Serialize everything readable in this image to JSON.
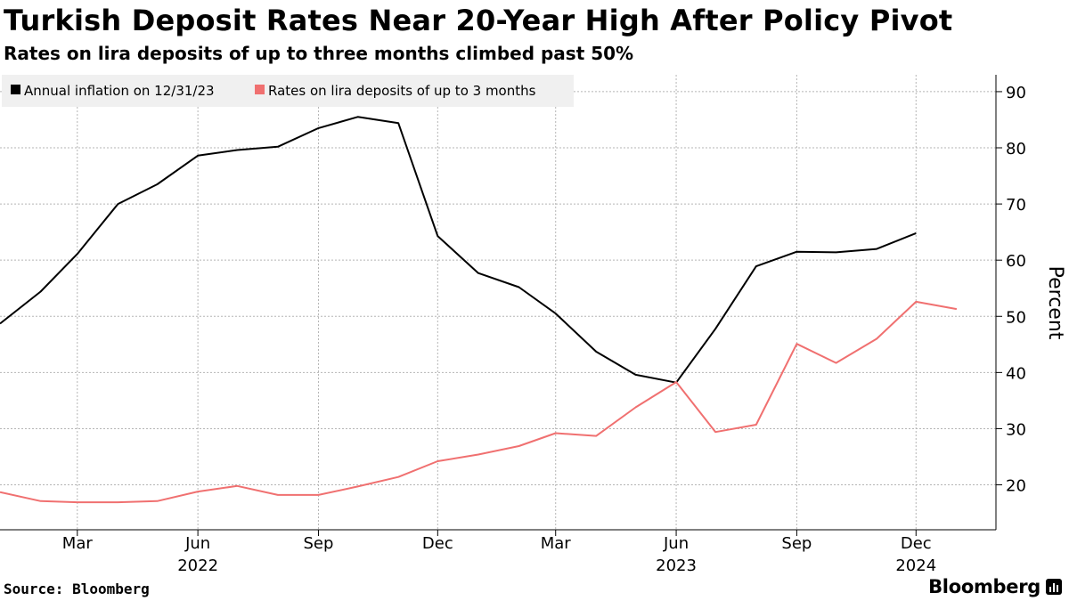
{
  "header": {
    "title": "Turkish Deposit Rates Near 20-Year High After Policy Pivot",
    "subtitle": "Rates on lira deposits of up to three months climbed past 50%"
  },
  "footer": {
    "source": "Source: Bloomberg",
    "brand": "Bloomberg"
  },
  "colors": {
    "inflation": "#000000",
    "deposit": "#f07070",
    "grid": "#b5b5b5",
    "legend_bg": "#f0f0f0"
  },
  "chart_data": {
    "type": "line",
    "ylabel": "Percent",
    "ylim": [
      12,
      93
    ],
    "yticks": [
      20,
      30,
      40,
      50,
      60,
      70,
      80,
      90
    ],
    "grid": true,
    "legend_position": "top-left",
    "x_range": [
      "2022-01-01",
      "2024-01-31"
    ],
    "x_ticks": [
      {
        "date": "2022-03-01",
        "label": "Mar",
        "year": ""
      },
      {
        "date": "2022-06-01",
        "label": "Jun",
        "year": "2022"
      },
      {
        "date": "2022-09-01",
        "label": "Sep",
        "year": ""
      },
      {
        "date": "2022-12-01",
        "label": "Dec",
        "year": ""
      },
      {
        "date": "2023-03-01",
        "label": "Mar",
        "year": ""
      },
      {
        "date": "2023-06-01",
        "label": "Jun",
        "year": "2023"
      },
      {
        "date": "2023-09-01",
        "label": "Sep",
        "year": ""
      },
      {
        "date": "2023-12-01",
        "label": "Dec",
        "year": "2024"
      }
    ],
    "series": [
      {
        "name": "Annual inflation on 12/31/23",
        "color": "#000000",
        "x": [
          "2022-01-01",
          "2022-02-01",
          "2022-03-01",
          "2022-04-01",
          "2022-05-01",
          "2022-06-01",
          "2022-07-01",
          "2022-08-01",
          "2022-09-01",
          "2022-10-01",
          "2022-11-01",
          "2022-12-01",
          "2023-01-01",
          "2023-02-01",
          "2023-03-01",
          "2023-04-01",
          "2023-05-01",
          "2023-06-01",
          "2023-07-01",
          "2023-08-01",
          "2023-09-01",
          "2023-10-01",
          "2023-11-01",
          "2023-12-01"
        ],
        "values": [
          48.7,
          54.4,
          61.1,
          70.0,
          73.5,
          78.6,
          79.6,
          80.2,
          83.5,
          85.5,
          84.4,
          64.3,
          57.7,
          55.2,
          50.5,
          43.7,
          39.6,
          38.2,
          47.8,
          58.9,
          61.5,
          61.4,
          62.0,
          64.8
        ]
      },
      {
        "name": "Rates on lira deposits of up to 3 months",
        "color": "#f07070",
        "x": [
          "2022-01-01",
          "2022-02-01",
          "2022-03-01",
          "2022-04-01",
          "2022-05-01",
          "2022-06-01",
          "2022-07-01",
          "2022-08-01",
          "2022-09-01",
          "2022-10-01",
          "2022-11-01",
          "2022-12-01",
          "2023-01-01",
          "2023-02-01",
          "2023-03-01",
          "2023-04-01",
          "2023-05-01",
          "2023-06-01",
          "2023-07-01",
          "2023-08-01",
          "2023-09-01",
          "2023-10-01",
          "2023-11-01",
          "2023-12-01",
          "2024-01-01"
        ],
        "values": [
          18.7,
          17.1,
          16.9,
          16.9,
          17.1,
          18.8,
          19.8,
          18.2,
          18.2,
          19.7,
          21.4,
          24.2,
          25.4,
          26.9,
          29.2,
          28.7,
          33.8,
          38.3,
          29.4,
          30.7,
          45.1,
          41.7,
          46.0,
          52.6,
          51.3
        ]
      }
    ]
  }
}
